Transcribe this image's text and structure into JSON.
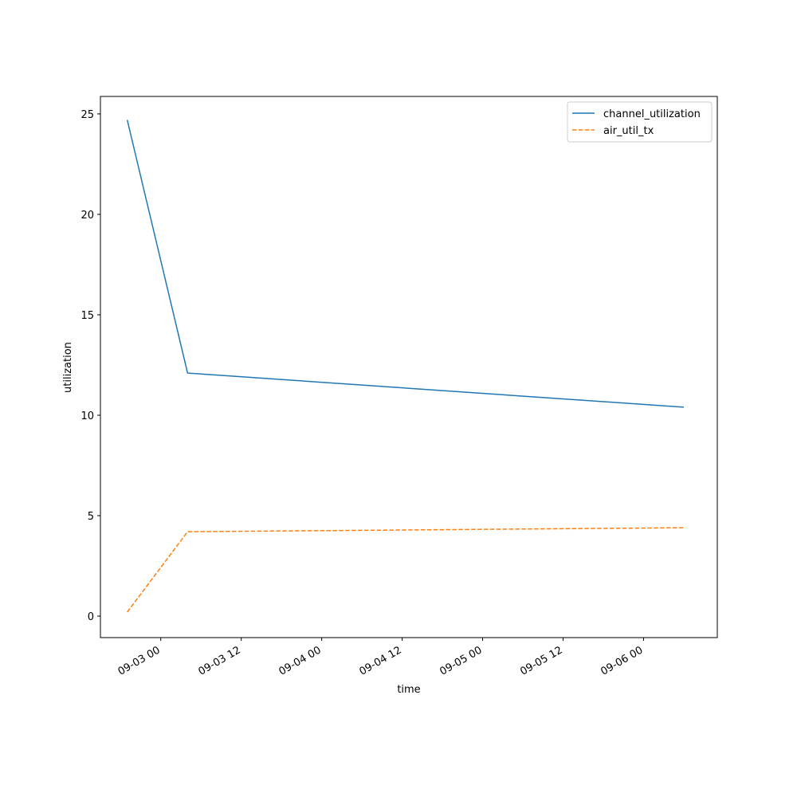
{
  "chart_data": {
    "type": "line",
    "x_label": "time",
    "y_label": "utilization",
    "x": [
      "09-02 19",
      "09-03 04",
      "09-06 06"
    ],
    "series": [
      {
        "name": "channel_utilization",
        "color": "#1f77b4",
        "dash": "solid",
        "values": [
          24.7,
          12.1,
          10.4
        ]
      },
      {
        "name": "air_util_tx",
        "color": "#ff7f0e",
        "dash": "dashed",
        "values": [
          0.2,
          4.2,
          4.4
        ]
      }
    ],
    "xlim": [
      "09-02 15",
      "09-06 11"
    ],
    "xticks": [
      "09-03 00",
      "09-03 12",
      "09-04 00",
      "09-04 12",
      "09-05 00",
      "09-05 12",
      "09-06 00"
    ],
    "ylim": [
      -1.07,
      25.87
    ],
    "yticks": [
      0,
      5,
      10,
      15,
      20,
      25
    ],
    "grid": false,
    "legend": "upper right"
  }
}
